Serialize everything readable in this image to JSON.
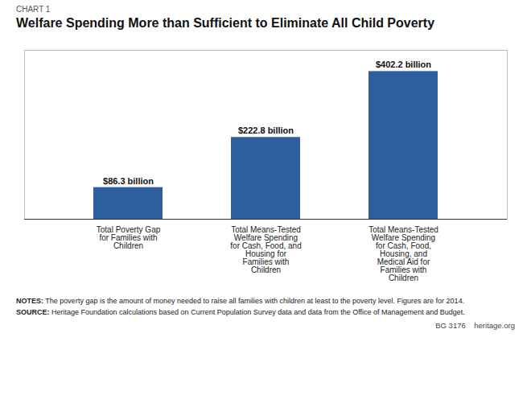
{
  "chart_data": {
    "type": "bar",
    "title": "Welfare Spending More than Sufficient to Eliminate All Child Poverty",
    "annotations": [
      "CHART 1",
      "NOTES: The poverty gap is the amount of money needed to raise all families with children at least to the poverty level. Figures are for 2014.",
      "SOURCE: Heritage Foundation calculations based on Current Population Survey data and data from the Office of Management and Budget.",
      "BG 3176    heritage.org"
    ],
    "categories": [
      "Total Poverty Gap\nfor Families with\nChildren",
      "Total Means-Tested\nWelfare Spending\nfor Cash, Food, and\nHousing for\nFamilies with\nChildren",
      "Total Means-Tested\nWelfare Spending\nfor Cash, Food,\nHousing, and\nMedical Aid for\nFamilies with\nChildren"
    ],
    "values": [
      86.3,
      222.8,
      402.2
    ],
    "value_labels": [
      "$86.3 billion",
      "$222.8 billion",
      "$402.2 billion"
    ],
    "data_labels": true,
    "color": "#2E5E9E",
    "ylim": [
      0,
      460
    ],
    "grid": false,
    "tick_labels": "x"
  }
}
